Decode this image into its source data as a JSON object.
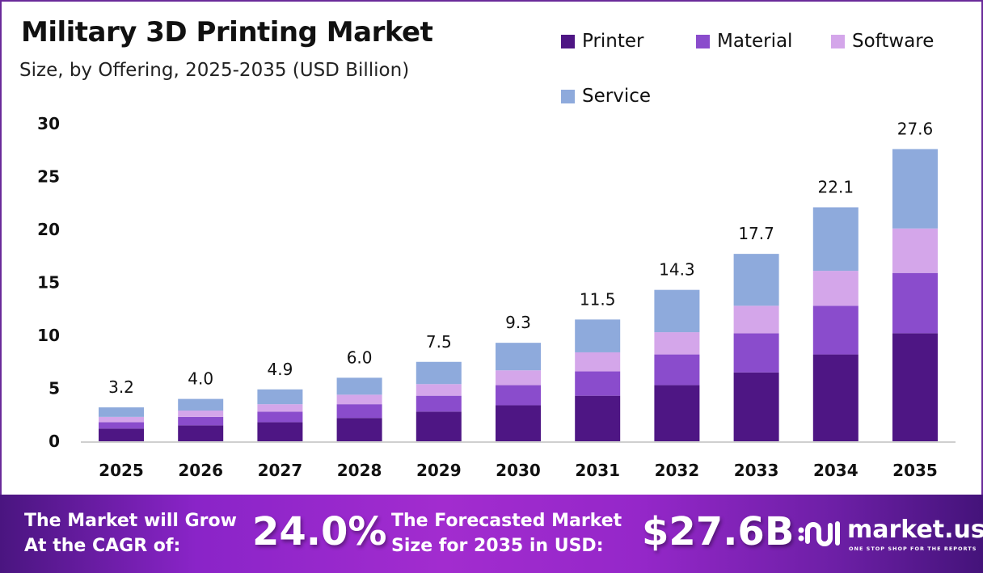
{
  "header": {
    "title": "Military 3D Printing Market",
    "subtitle": "Size, by Offering, 2025-2035 (USD Billion)"
  },
  "chart_data": {
    "type": "bar",
    "stacked": true,
    "title": "Military 3D Printing Market",
    "subtitle": "Size, by Offering, 2025-2035 (USD Billion)",
    "xlabel": "",
    "ylabel": "",
    "ylim": [
      0,
      30
    ],
    "yticks": [
      0,
      5,
      10,
      15,
      20,
      25,
      30
    ],
    "grid": false,
    "legend_position": "top-right",
    "categories": [
      "2025",
      "2026",
      "2027",
      "2028",
      "2029",
      "2030",
      "2031",
      "2032",
      "2033",
      "2034",
      "2035"
    ],
    "totals": [
      3.2,
      4.0,
      4.9,
      6.0,
      7.5,
      9.3,
      11.5,
      14.3,
      17.7,
      22.1,
      27.6
    ],
    "total_labels": [
      "3.2",
      "4.0",
      "4.9",
      "6.0",
      "7.5",
      "9.3",
      "11.5",
      "14.3",
      "17.7",
      "22.1",
      "27.6"
    ],
    "series": [
      {
        "name": "Printer",
        "color": "#4e1684",
        "values": [
          1.2,
          1.5,
          1.8,
          2.2,
          2.8,
          3.4,
          4.3,
          5.3,
          6.5,
          8.2,
          10.2
        ]
      },
      {
        "name": "Material",
        "color": "#8a4ccc",
        "values": [
          0.6,
          0.8,
          1.0,
          1.3,
          1.5,
          1.9,
          2.3,
          2.9,
          3.7,
          4.6,
          5.7
        ]
      },
      {
        "name": "Software",
        "color": "#d4a6ea",
        "values": [
          0.5,
          0.6,
          0.7,
          0.9,
          1.1,
          1.4,
          1.8,
          2.1,
          2.6,
          3.3,
          4.2
        ]
      },
      {
        "name": "Service",
        "color": "#8eaadc",
        "values": [
          0.9,
          1.1,
          1.4,
          1.6,
          2.1,
          2.6,
          3.1,
          4.0,
          4.9,
          6.0,
          7.5
        ]
      }
    ]
  },
  "banner": {
    "cagr_label_line1": "The Market will Grow",
    "cagr_label_line2": "At the CAGR of:",
    "cagr_value": "24.0%",
    "size_label_line1": "The Forecasted Market",
    "size_label_line2": "Size for 2035 in USD:",
    "size_value": "$27.6B",
    "logo_name": "market.us",
    "logo_tagline": "ONE STOP SHOP FOR THE REPORTS"
  }
}
